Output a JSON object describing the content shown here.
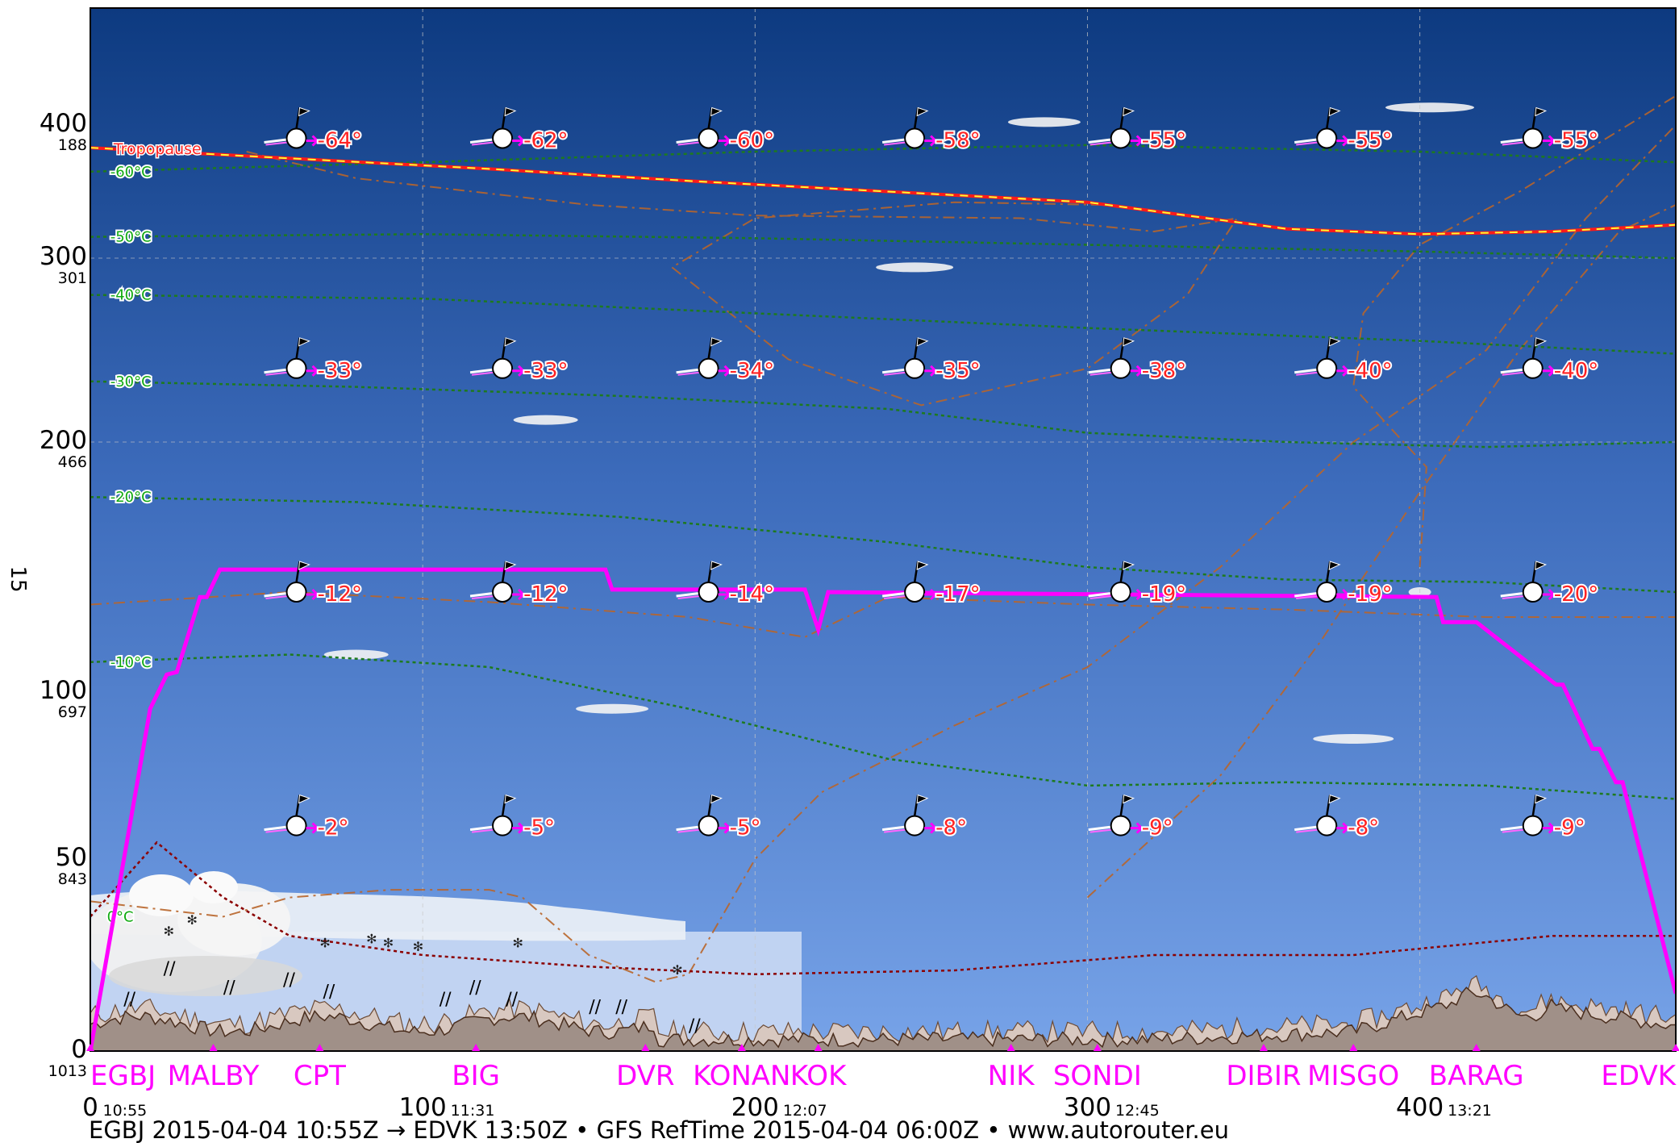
{
  "footer": "EGBJ 2015-04-04 10:55Z → EDVK 13:50Z • GFS RefTime 2015-04-04 06:00Z • www.autorouter.eu",
  "left_label": "15",
  "chart_data": {
    "type": "line",
    "title": "",
    "xlim": [
      0,
      477
    ],
    "x_ticks": [
      {
        "value": 0,
        "label": "0",
        "time": "10:55"
      },
      {
        "value": 100,
        "label": "100",
        "time": "11:31"
      },
      {
        "value": 200,
        "label": "200",
        "time": "12:07"
      },
      {
        "value": 300,
        "label": "300",
        "time": "12:45"
      },
      {
        "value": 400,
        "label": "400",
        "time": "13:21"
      }
    ],
    "y_ticks": [
      {
        "fl": "0",
        "hpa": "1013"
      },
      {
        "fl": "50",
        "hpa": "843"
      },
      {
        "fl": "100",
        "hpa": "697"
      },
      {
        "fl": "200",
        "hpa": "466"
      },
      {
        "fl": "300",
        "hpa": "301"
      },
      {
        "fl": "400",
        "hpa": "188"
      }
    ],
    "waypoints": [
      {
        "name": "EGBJ",
        "dist": 0
      },
      {
        "name": "MALBY",
        "dist": 37
      },
      {
        "name": "CPT",
        "dist": 69
      },
      {
        "name": "BIG",
        "dist": 116
      },
      {
        "name": "DVR",
        "dist": 167
      },
      {
        "name": "KONAN",
        "dist": 196
      },
      {
        "name": "KOK",
        "dist": 219
      },
      {
        "name": "NIK",
        "dist": 277
      },
      {
        "name": "SONDI",
        "dist": 303
      },
      {
        "name": "DIBIR",
        "dist": 353
      },
      {
        "name": "MISGO",
        "dist": 380
      },
      {
        "name": "BARAG",
        "dist": 417
      },
      {
        "name": "EDVK",
        "dist": 477
      }
    ],
    "flight_profile": {
      "name": "",
      "color": "#ff00ff",
      "x": [
        0,
        18,
        23,
        26,
        33,
        35,
        39,
        155,
        157,
        215,
        219,
        222,
        405,
        407,
        417,
        441,
        443,
        452,
        454,
        459,
        461,
        477
      ],
      "y": [
        0,
        95,
        107,
        108,
        138,
        138,
        149,
        149,
        141,
        141,
        125,
        140,
        138,
        128,
        128,
        103,
        103,
        83,
        83,
        73,
        73,
        15
      ]
    },
    "tropopause": {
      "label": "Tropopause",
      "x": [
        0,
        60,
        120,
        180,
        240,
        300,
        360,
        400,
        440,
        477
      ],
      "y": [
        383,
        375,
        367,
        358,
        350,
        342,
        322,
        318,
        320,
        325
      ]
    },
    "isotherms": [
      {
        "label": "-60°C",
        "fl_start": 365
      },
      {
        "label": "-50°C",
        "fl_start": 316
      },
      {
        "label": "-40°C",
        "fl_start": 280
      },
      {
        "label": "-30°C",
        "fl_start": 233
      },
      {
        "label": "-20°C",
        "fl_start": 178
      },
      {
        "label": "-10°C",
        "fl_start": 112
      },
      {
        "label": "0°C",
        "fl_start": 35
      }
    ],
    "temperatures": [
      {
        "fl": 390,
        "values": [
          "-64°",
          "-62°",
          "-60°",
          "-58°",
          "-55°",
          "-55°",
          "-55°"
        ]
      },
      {
        "fl": 240,
        "values": [
          "-33°",
          "-33°",
          "-34°",
          "-35°",
          "-38°",
          "-40°",
          "-40°"
        ]
      },
      {
        "fl": 140,
        "values": [
          "-12°",
          "-12°",
          "-14°",
          "-17°",
          "-19°",
          "-19°",
          "-20°"
        ]
      },
      {
        "fl": 60,
        "values": [
          "-2°",
          "-5°",
          "-5°",
          "-8°",
          "-9°",
          "-8°",
          "-9°"
        ]
      }
    ],
    "wind_columns_dist": [
      62,
      124,
      186,
      248,
      310,
      372,
      434
    ],
    "grid": true
  },
  "colors": {
    "sky_top": "#0d3a80",
    "sky_bottom": "#77a3e8",
    "profile": "#ff00ff",
    "isotherm": "#1e7a1e",
    "contour": "#b8652a",
    "zero_isotherm": "#8b0000",
    "terrain": "#a09088",
    "temperature": "#ff2222"
  }
}
